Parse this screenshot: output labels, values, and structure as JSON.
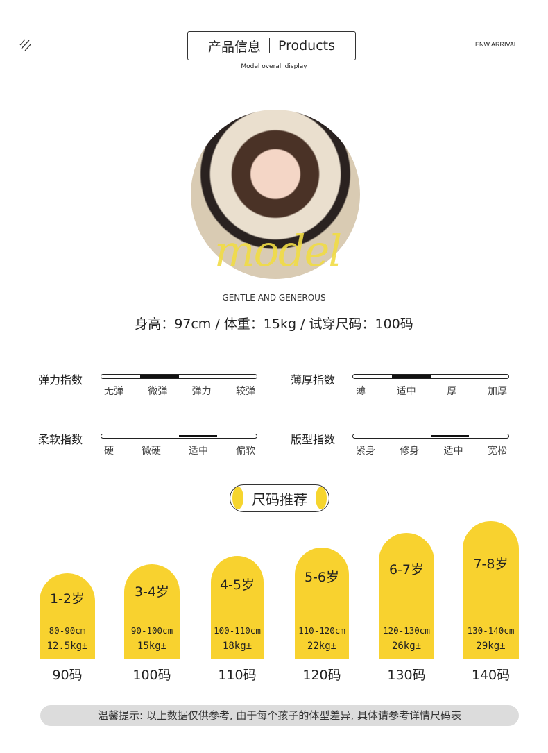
{
  "header": {
    "menu_icon": "diagonal-lines-icon",
    "title_cn": "产品信息",
    "title_en": "Products",
    "subtitle": "Model overall display",
    "tag": "ENW ARRIVAL"
  },
  "model": {
    "script_text": "model",
    "tagline": "GENTLE AND GENEROUS",
    "stats": "身高：97cm / 体重：15kg / 试穿尺码：100码"
  },
  "indices": [
    {
      "label": "弹力指数",
      "ticks": [
        "无弹",
        "微弹",
        "弹力",
        "较弹"
      ],
      "level_range": [
        0.25,
        0.5
      ]
    },
    {
      "label": "薄厚指数",
      "ticks": [
        "薄",
        "适中",
        "厚",
        "加厚"
      ],
      "level_range": [
        0.25,
        0.5
      ]
    },
    {
      "label": "柔软指数",
      "ticks": [
        "硬",
        "微硬",
        "适中",
        "偏软"
      ],
      "level_range": [
        0.5,
        0.75
      ]
    },
    {
      "label": "版型指数",
      "ticks": [
        "紧身",
        "修身",
        "适中",
        "宽松"
      ],
      "level_range": [
        0.5,
        0.75
      ]
    }
  ],
  "size_title": "尺码推荐",
  "sizes": [
    {
      "age": "1-2岁",
      "height": "80-90cm",
      "weight": "12.5kg±",
      "size": "90码"
    },
    {
      "age": "3-4岁",
      "height": "90-100cm",
      "weight": "15kg±",
      "size": "100码"
    },
    {
      "age": "4-5岁",
      "height": "100-110cm",
      "weight": "18kg±",
      "size": "110码"
    },
    {
      "age": "5-6岁",
      "height": "110-120cm",
      "weight": "22kg±",
      "size": "120码"
    },
    {
      "age": "6-7岁",
      "height": "120-130cm",
      "weight": "26kg±",
      "size": "130码"
    },
    {
      "age": "7-8岁",
      "height": "130-140cm",
      "weight": "29kg±",
      "size": "140码"
    }
  ],
  "tip": "温馨提示: 以上数据仅供参考, 由于每个孩子的体型差异, 具体请参考详情尺码表",
  "colors": {
    "accent": "#f8d22f",
    "tip_bg": "#dcdcdc"
  }
}
